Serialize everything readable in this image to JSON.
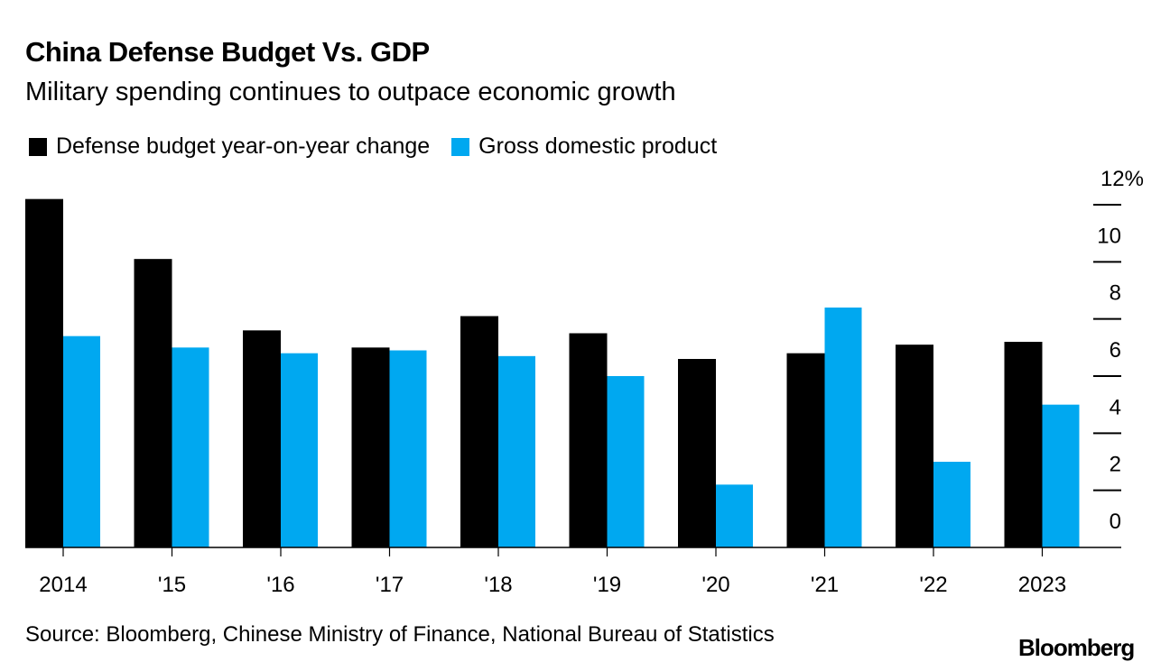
{
  "title": "China Defense Budget Vs. GDP",
  "subtitle": "Military spending continues to outpace economic growth",
  "source": "Source: Bloomberg, Chinese Ministry of Finance, National Bureau of Statistics",
  "logo": "Bloomberg",
  "legend": [
    {
      "label": "Defense budget year-on-year change",
      "color": "#000000"
    },
    {
      "label": "Gross domestic product",
      "color": "#00A8F0"
    }
  ],
  "chart_data": {
    "type": "bar",
    "title": "China Defense Budget Vs. GDP",
    "subtitle": "Military spending continues to outpace economic growth",
    "xlabel": "",
    "ylabel": "",
    "categories": [
      "2014",
      "'15",
      "'16",
      "'17",
      "'18",
      "'19",
      "'20",
      "'21",
      "'22",
      "2023"
    ],
    "series": [
      {
        "name": "Defense budget year-on-year change",
        "color": "#000000",
        "values": [
          12.2,
          10.1,
          7.6,
          7.0,
          8.1,
          7.5,
          6.6,
          6.8,
          7.1,
          7.2
        ]
      },
      {
        "name": "Gross domestic product",
        "color": "#00A8F0",
        "values": [
          7.4,
          7.0,
          6.8,
          6.9,
          6.7,
          6.0,
          2.2,
          8.4,
          3.0,
          5.0
        ]
      }
    ],
    "ylim": [
      0,
      12
    ],
    "yticks": [
      0,
      2,
      4,
      6,
      8,
      10,
      12
    ],
    "ytick_labels": [
      "0",
      "2",
      "4",
      "6",
      "8",
      "10",
      "12%"
    ],
    "y_axis_position": "right",
    "grid": false,
    "legend_position": "top-left"
  }
}
